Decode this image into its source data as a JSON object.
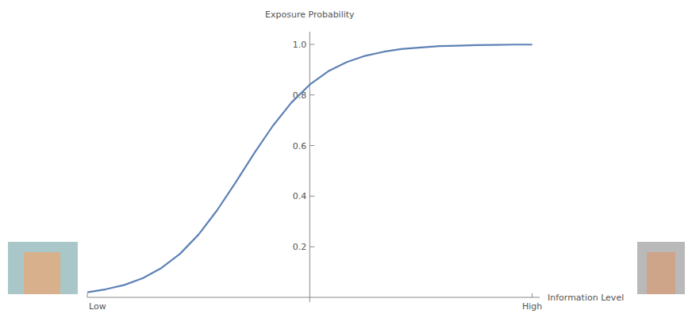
{
  "chart_data": {
    "type": "line",
    "x_label": "Information Level",
    "y_label": "Exposure Probability",
    "x": [
      -3,
      -2.75,
      -2.5,
      -2.25,
      -2,
      -1.75,
      -1.5,
      -1.25,
      -1,
      -0.75,
      -0.5,
      -0.25,
      0,
      0.25,
      0.5,
      0.75,
      1,
      1.25,
      1.5,
      1.75,
      2,
      2.25,
      2.5,
      2.75,
      3
    ],
    "series": [
      {
        "color": "#5e81b5",
        "values": [
          0.02,
          0.032,
          0.049,
          0.076,
          0.116,
          0.172,
          0.248,
          0.344,
          0.454,
          0.569,
          0.677,
          0.769,
          0.841,
          0.894,
          0.93,
          0.955,
          0.971,
          0.982,
          0.988,
          0.993,
          0.995,
          0.997,
          0.998,
          0.999,
          0.999
        ]
      }
    ],
    "xlim": [
      -3,
      3.1
    ],
    "xticks": [
      {
        "value": -3,
        "label": "Low"
      },
      {
        "value": 3,
        "label": "High"
      }
    ],
    "ylim": [
      0,
      1.05
    ],
    "yticks": [
      0.2,
      0.4,
      0.6,
      {
        "value": 0.8,
        "label": "0.8"
      },
      {
        "value": 1,
        "label": "1.0"
      }
    ],
    "grid": false
  }
}
